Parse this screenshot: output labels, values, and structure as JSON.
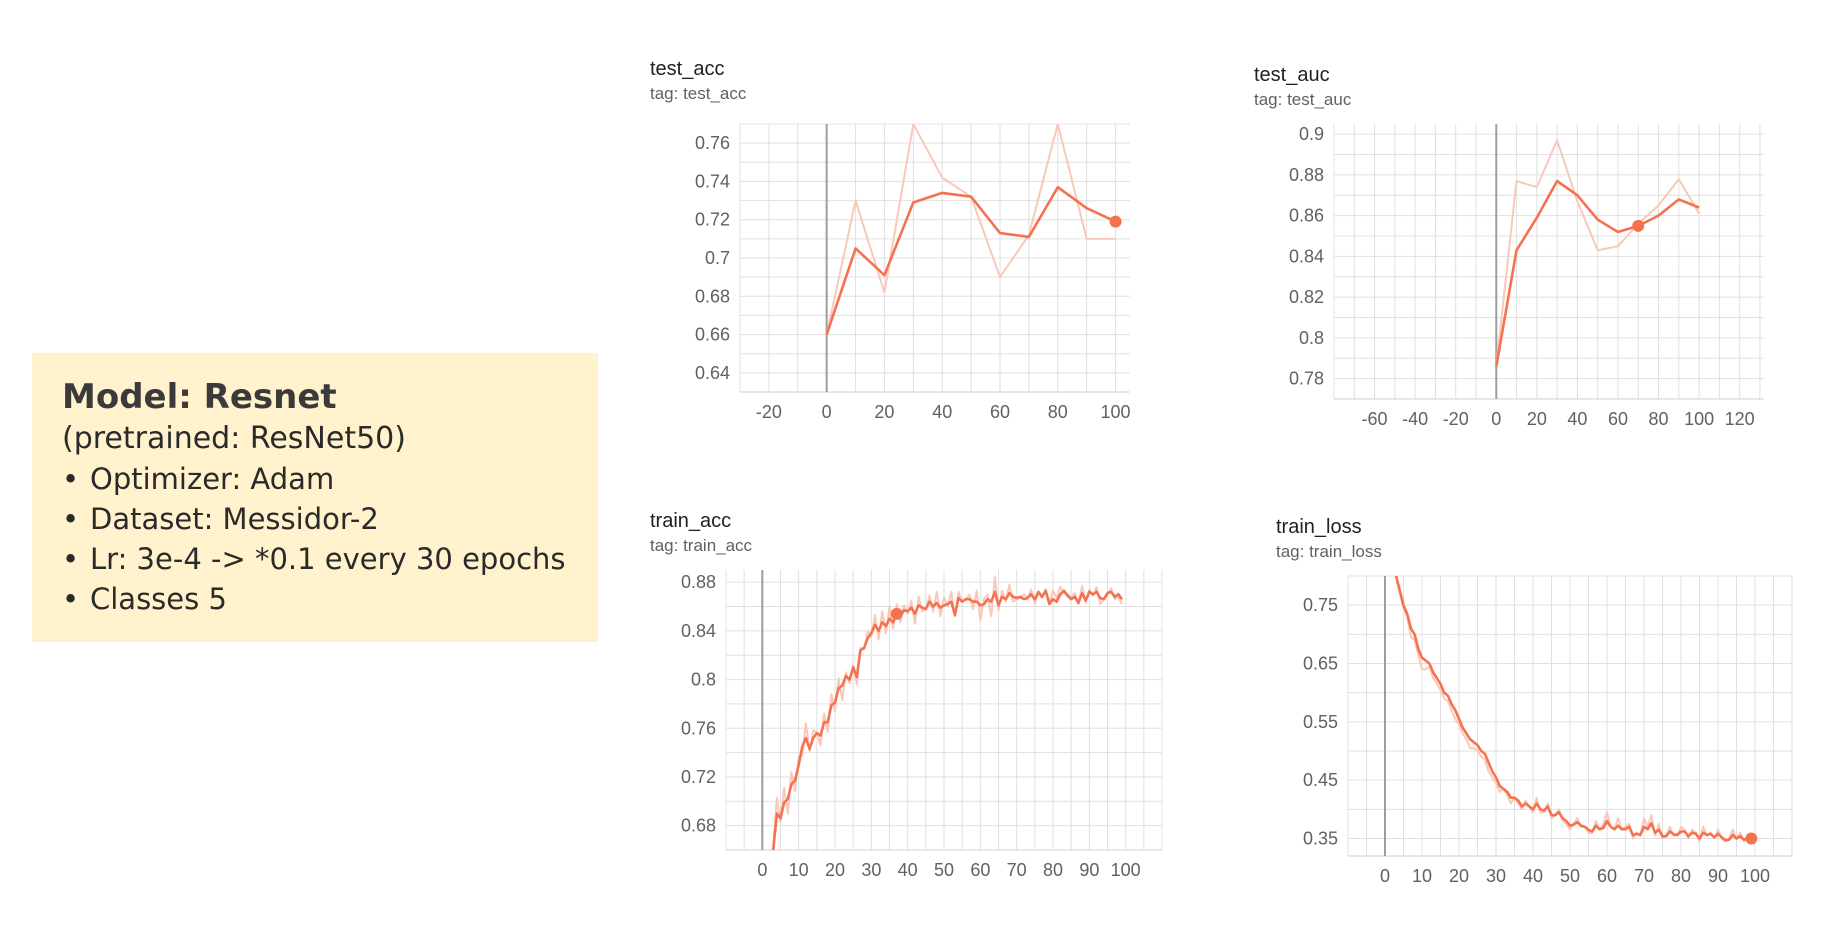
{
  "info": {
    "title": "Model: Resnet",
    "subtitle": "(pretrained: ResNet50)",
    "bullets": [
      "Optimizer: Adam",
      "Dataset: Messidor-2",
      "Lr: 3e-4 -> *0.1 every 30 epochs",
      "Classes 5"
    ]
  },
  "colors": {
    "smoothed": "#f57251",
    "raw": "#f9c8b8",
    "grid": "#e0e0e0",
    "zero_line": "#9e9e9e",
    "info_bg": "#fff2cc"
  },
  "chart_data": [
    {
      "id": "test_acc",
      "type": "line",
      "title": "test_acc",
      "tag": "tag: test_acc",
      "xlim": [
        -30,
        105
      ],
      "ylim": [
        0.63,
        0.77
      ],
      "xticks": [
        "-20",
        "0",
        "20",
        "40",
        "60",
        "80",
        "100"
      ],
      "xtick_values": [
        -20,
        0,
        20,
        40,
        60,
        80,
        100
      ],
      "yticks": [
        "0.64",
        "0.66",
        "0.68",
        "0.7",
        "0.72",
        "0.74",
        "0.76"
      ],
      "ytick_values": [
        0.64,
        0.66,
        0.68,
        0.7,
        0.72,
        0.74,
        0.76
      ],
      "highlight_index": 10,
      "series": [
        {
          "x": [
            0,
            10,
            20,
            30,
            40,
            50,
            60,
            70,
            80,
            90,
            100
          ],
          "y": [
            0.66,
            0.73,
            0.682,
            0.77,
            0.742,
            0.732,
            0.69,
            0.712,
            0.77,
            0.71,
            0.71
          ]
        },
        {
          "x": [
            0,
            10,
            20,
            30,
            40,
            50,
            60,
            70,
            80,
            90,
            100
          ],
          "y": [
            0.66,
            0.705,
            0.691,
            0.729,
            0.734,
            0.732,
            0.713,
            0.711,
            0.737,
            0.726,
            0.719
          ]
        }
      ]
    },
    {
      "id": "test_auc",
      "type": "line",
      "title": "test_auc",
      "tag": "tag: test_auc",
      "xlim": [
        -80,
        132
      ],
      "ylim": [
        0.77,
        0.905
      ],
      "xticks": [
        "-60",
        "-40",
        "-20",
        "0",
        "20",
        "40",
        "60",
        "80",
        "100",
        "120"
      ],
      "xtick_values": [
        -60,
        -40,
        -20,
        0,
        20,
        40,
        60,
        80,
        100,
        120
      ],
      "yticks": [
        "0.78",
        "0.8",
        "0.82",
        "0.84",
        "0.86",
        "0.88",
        "0.9"
      ],
      "ytick_values": [
        0.78,
        0.8,
        0.82,
        0.84,
        0.86,
        0.88,
        0.9
      ],
      "highlight_index": 7,
      "series": [
        {
          "x": [
            0,
            10,
            20,
            30,
            40,
            50,
            60,
            70,
            80,
            90,
            100
          ],
          "y": [
            0.786,
            0.877,
            0.874,
            0.897,
            0.867,
            0.843,
            0.845,
            0.856,
            0.865,
            0.878,
            0.861
          ]
        },
        {
          "x": [
            0,
            10,
            20,
            30,
            40,
            50,
            60,
            70,
            80,
            90,
            100
          ],
          "y": [
            0.786,
            0.843,
            0.859,
            0.877,
            0.87,
            0.858,
            0.852,
            0.855,
            0.86,
            0.868,
            0.864
          ]
        }
      ]
    },
    {
      "id": "train_acc",
      "type": "line",
      "title": "train_acc",
      "tag": "tag: train_acc",
      "xlim": [
        -10,
        110
      ],
      "ylim": [
        0.66,
        0.89
      ],
      "xticks": [
        "0",
        "10",
        "20",
        "30",
        "40",
        "50",
        "60",
        "70",
        "80",
        "90",
        "100"
      ],
      "xtick_values": [
        0,
        10,
        20,
        30,
        40,
        50,
        60,
        70,
        80,
        90,
        100
      ],
      "yticks": [
        "0.68",
        "0.72",
        "0.76",
        "0.8",
        "0.84",
        "0.88"
      ],
      "ytick_values": [
        0.68,
        0.72,
        0.76,
        0.8,
        0.84,
        0.88
      ],
      "highlight_index": 34,
      "series": [
        {
          "x": [
            3,
            4,
            5,
            6,
            7,
            8,
            9,
            10,
            11,
            12,
            13,
            14,
            15,
            16,
            17,
            18,
            19,
            20,
            21,
            22,
            23,
            24,
            25,
            26,
            27,
            28,
            29,
            30,
            31,
            32,
            33,
            34,
            35,
            36,
            37,
            38,
            39,
            40,
            41,
            42,
            43,
            44,
            45,
            46,
            47,
            48,
            49,
            50,
            51,
            52,
            53,
            54,
            55,
            56,
            57,
            58,
            59,
            60,
            61,
            62,
            63,
            64,
            65,
            66,
            67,
            68,
            69,
            70,
            71,
            72,
            73,
            74,
            75,
            76,
            77,
            78,
            79,
            80,
            81,
            82,
            83,
            84,
            85,
            86,
            87,
            88,
            89,
            90,
            91,
            92,
            93,
            94,
            95,
            96,
            97,
            98,
            99
          ],
          "y": [
            0.663,
            0.703,
            0.683,
            0.711,
            0.69,
            0.724,
            0.708,
            0.736,
            0.738,
            0.764,
            0.741,
            0.758,
            0.757,
            0.746,
            0.772,
            0.757,
            0.788,
            0.774,
            0.801,
            0.783,
            0.806,
            0.797,
            0.813,
            0.796,
            0.826,
            0.825,
            0.84,
            0.835,
            0.853,
            0.833,
            0.856,
            0.838,
            0.86,
            0.842,
            0.862,
            0.847,
            0.861,
            0.854,
            0.865,
            0.846,
            0.868,
            0.856,
            0.858,
            0.869,
            0.856,
            0.872,
            0.852,
            0.868,
            0.86,
            0.872,
            0.852,
            0.872,
            0.864,
            0.866,
            0.87,
            0.858,
            0.873,
            0.849,
            0.866,
            0.87,
            0.852,
            0.884,
            0.857,
            0.873,
            0.864,
            0.878,
            0.864,
            0.866,
            0.867,
            0.87,
            0.867,
            0.874,
            0.862,
            0.872,
            0.867,
            0.874,
            0.863,
            0.873,
            0.867,
            0.876,
            0.871,
            0.87,
            0.868,
            0.871,
            0.862,
            0.877,
            0.863,
            0.874,
            0.869,
            0.876,
            0.862,
            0.866,
            0.87,
            0.875,
            0.866,
            0.868,
            0.862
          ]
        },
        {
          "x": [
            3,
            4,
            5,
            6,
            7,
            8,
            9,
            10,
            11,
            12,
            13,
            14,
            15,
            16,
            17,
            18,
            19,
            20,
            21,
            22,
            23,
            24,
            25,
            26,
            27,
            28,
            29,
            30,
            31,
            32,
            33,
            34,
            35,
            36,
            37,
            38,
            39,
            40,
            41,
            42,
            43,
            44,
            45,
            46,
            47,
            48,
            49,
            50,
            51,
            52,
            53,
            54,
            55,
            56,
            57,
            58,
            59,
            60,
            61,
            62,
            63,
            64,
            65,
            66,
            67,
            68,
            69,
            70,
            71,
            72,
            73,
            74,
            75,
            76,
            77,
            78,
            79,
            80,
            81,
            82,
            83,
            84,
            85,
            86,
            87,
            88,
            89,
            90,
            91,
            92,
            93,
            94,
            95,
            96,
            97,
            98,
            99
          ],
          "y": [
            0.66,
            0.69,
            0.686,
            0.699,
            0.702,
            0.714,
            0.717,
            0.73,
            0.745,
            0.752,
            0.743,
            0.752,
            0.756,
            0.754,
            0.765,
            0.765,
            0.779,
            0.781,
            0.793,
            0.795,
            0.803,
            0.8,
            0.81,
            0.802,
            0.824,
            0.826,
            0.834,
            0.838,
            0.845,
            0.84,
            0.847,
            0.844,
            0.85,
            0.847,
            0.854,
            0.852,
            0.857,
            0.856,
            0.859,
            0.854,
            0.861,
            0.859,
            0.858,
            0.864,
            0.86,
            0.863,
            0.859,
            0.861,
            0.862,
            0.864,
            0.853,
            0.867,
            0.864,
            0.866,
            0.866,
            0.864,
            0.864,
            0.861,
            0.862,
            0.866,
            0.864,
            0.872,
            0.861,
            0.868,
            0.866,
            0.871,
            0.868,
            0.867,
            0.868,
            0.866,
            0.867,
            0.87,
            0.866,
            0.872,
            0.868,
            0.873,
            0.862,
            0.866,
            0.864,
            0.87,
            0.873,
            0.869,
            0.866,
            0.868,
            0.863,
            0.871,
            0.865,
            0.872,
            0.87,
            0.872,
            0.867,
            0.866,
            0.871,
            0.872,
            0.868,
            0.87,
            0.866
          ]
        }
      ]
    },
    {
      "id": "train_loss",
      "type": "line",
      "title": "train_loss",
      "tag": "tag: train_loss",
      "xlim": [
        -10,
        110
      ],
      "ylim": [
        0.32,
        0.8
      ],
      "xticks": [
        "0",
        "10",
        "20",
        "30",
        "40",
        "50",
        "60",
        "70",
        "80",
        "90",
        "100"
      ],
      "xtick_values": [
        0,
        10,
        20,
        30,
        40,
        50,
        60,
        70,
        80,
        90,
        100
      ],
      "yticks": [
        "0.35",
        "0.45",
        "0.55",
        "0.65",
        "0.75"
      ],
      "ytick_values": [
        0.35,
        0.45,
        0.55,
        0.65,
        0.75
      ],
      "highlight_index": 96,
      "series": [
        {
          "x": [
            3,
            4,
            5,
            6,
            7,
            8,
            9,
            10,
            11,
            12,
            13,
            14,
            15,
            16,
            17,
            18,
            19,
            20,
            21,
            22,
            23,
            24,
            25,
            26,
            27,
            28,
            29,
            30,
            31,
            32,
            33,
            34,
            35,
            36,
            37,
            38,
            39,
            40,
            41,
            42,
            43,
            44,
            45,
            46,
            47,
            48,
            49,
            50,
            51,
            52,
            53,
            54,
            55,
            56,
            57,
            58,
            59,
            60,
            61,
            62,
            63,
            64,
            65,
            66,
            67,
            68,
            69,
            70,
            71,
            72,
            73,
            74,
            75,
            76,
            77,
            78,
            79,
            80,
            81,
            82,
            83,
            84,
            85,
            86,
            87,
            88,
            89,
            90,
            91,
            92,
            93,
            94,
            95,
            96,
            97,
            98,
            99
          ],
          "y": [
            0.8,
            0.77,
            0.745,
            0.73,
            0.695,
            0.69,
            0.665,
            0.64,
            0.64,
            0.645,
            0.625,
            0.615,
            0.605,
            0.59,
            0.585,
            0.57,
            0.555,
            0.545,
            0.53,
            0.52,
            0.505,
            0.505,
            0.5,
            0.49,
            0.485,
            0.465,
            0.455,
            0.445,
            0.43,
            0.435,
            0.425,
            0.41,
            0.42,
            0.41,
            0.4,
            0.415,
            0.405,
            0.395,
            0.42,
            0.395,
            0.395,
            0.41,
            0.385,
            0.39,
            0.4,
            0.38,
            0.375,
            0.365,
            0.375,
            0.385,
            0.37,
            0.37,
            0.36,
            0.36,
            0.38,
            0.365,
            0.375,
            0.395,
            0.37,
            0.365,
            0.385,
            0.365,
            0.37,
            0.375,
            0.35,
            0.36,
            0.355,
            0.385,
            0.37,
            0.39,
            0.355,
            0.375,
            0.35,
            0.355,
            0.37,
            0.355,
            0.355,
            0.37,
            0.365,
            0.35,
            0.365,
            0.36,
            0.345,
            0.37,
            0.355,
            0.36,
            0.35,
            0.365,
            0.35,
            0.345,
            0.35,
            0.365,
            0.35,
            0.36,
            0.345,
            0.35,
            0.355
          ]
        },
        {
          "x": [
            3,
            4,
            5,
            6,
            7,
            8,
            9,
            10,
            11,
            12,
            13,
            14,
            15,
            16,
            17,
            18,
            19,
            20,
            21,
            22,
            23,
            24,
            25,
            26,
            27,
            28,
            29,
            30,
            31,
            32,
            33,
            34,
            35,
            36,
            37,
            38,
            39,
            40,
            41,
            42,
            43,
            44,
            45,
            46,
            47,
            48,
            49,
            50,
            51,
            52,
            53,
            54,
            55,
            56,
            57,
            58,
            59,
            60,
            61,
            62,
            63,
            64,
            65,
            66,
            67,
            68,
            69,
            70,
            71,
            72,
            73,
            74,
            75,
            76,
            77,
            78,
            79,
            80,
            81,
            82,
            83,
            84,
            85,
            86,
            87,
            88,
            89,
            90,
            91,
            92,
            93,
            94,
            95,
            96,
            97,
            98,
            99
          ],
          "y": [
            0.8,
            0.775,
            0.75,
            0.735,
            0.71,
            0.7,
            0.675,
            0.66,
            0.655,
            0.65,
            0.635,
            0.625,
            0.615,
            0.6,
            0.595,
            0.58,
            0.57,
            0.555,
            0.54,
            0.53,
            0.52,
            0.515,
            0.51,
            0.5,
            0.495,
            0.48,
            0.465,
            0.455,
            0.44,
            0.435,
            0.43,
            0.42,
            0.42,
            0.415,
            0.405,
            0.41,
            0.405,
            0.4,
            0.41,
            0.4,
            0.398,
            0.405,
            0.39,
            0.39,
            0.395,
            0.385,
            0.38,
            0.372,
            0.374,
            0.378,
            0.372,
            0.37,
            0.365,
            0.362,
            0.372,
            0.366,
            0.368,
            0.38,
            0.37,
            0.366,
            0.372,
            0.366,
            0.366,
            0.37,
            0.356,
            0.358,
            0.356,
            0.37,
            0.366,
            0.376,
            0.36,
            0.365,
            0.354,
            0.354,
            0.362,
            0.357,
            0.356,
            0.362,
            0.362,
            0.354,
            0.36,
            0.358,
            0.35,
            0.36,
            0.356,
            0.358,
            0.352,
            0.358,
            0.352,
            0.347,
            0.348,
            0.356,
            0.35,
            0.354,
            0.348,
            0.35,
            0.35
          ]
        }
      ]
    }
  ]
}
